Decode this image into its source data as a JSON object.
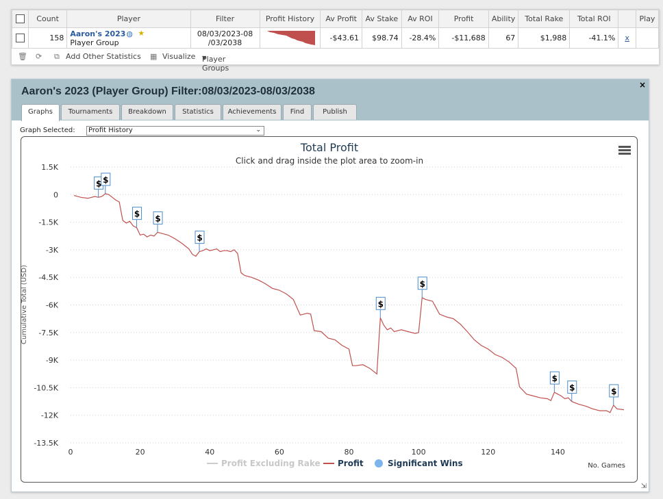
{
  "stats_table": {
    "headers": [
      "Count",
      "Player",
      "Filter",
      "Profit History",
      "Av Profit",
      "Av Stake",
      "Av ROI",
      "Profit",
      "Ability",
      "Total Rake",
      "Total ROI",
      "",
      "Play"
    ],
    "row": {
      "count": "158",
      "player_name": "Aaron's 2023",
      "player_type": "Player Group",
      "filter_line1": "08/03/2023-08",
      "filter_line2": "/03/2038",
      "av_profit": "-$43.61",
      "av_stake": "$98.74",
      "av_roi": "-28.4%",
      "profit": "-$11,688",
      "ability": "67",
      "total_rake": "$1,988",
      "total_roi": "-41.1%",
      "x_link": "x"
    }
  },
  "toolbar": {
    "add_stats": "Add Other Statistics",
    "visualize": "Visualize",
    "player_groups": "Player Groups"
  },
  "group_panel": {
    "title": "Aaron's 2023 (Player Group) Filter:08/03/2023-08/03/2038",
    "close": "×",
    "tabs": [
      "Graphs",
      "Tournaments",
      "Breakdown",
      "Statistics",
      "Achievements",
      "Find",
      "Publish"
    ],
    "active_tab": 0,
    "graph_selected_label": "Graph Selected:",
    "graph_selected_value": "Profit History"
  },
  "chart_data": {
    "type": "line",
    "title": "Total Profit",
    "subtitle": "Click and drag inside the plot area to zoom-in",
    "xlabel": "No. Games",
    "ylabel": "Cumulative Total (USD)",
    "xlim": [
      0,
      159
    ],
    "ylim": [
      -13500,
      1500
    ],
    "x_ticks": [
      0,
      20,
      40,
      60,
      80,
      100,
      120,
      140
    ],
    "y_ticks": [
      1500,
      0,
      -1500,
      -3000,
      -4500,
      -6000,
      -7500,
      -9000,
      -10500,
      -12000,
      -13500
    ],
    "y_tick_labels": [
      "1.5K",
      "0",
      "-1.5K",
      "-3K",
      "-4.5K",
      "-6K",
      "-7.5K",
      "-9K",
      "-10.5K",
      "-12K",
      "-13.5K"
    ],
    "legend": [
      "Profit Excluding Rake",
      "Profit",
      "Significant Wins"
    ],
    "series": [
      {
        "name": "Profit",
        "color": "#c0504d",
        "points": [
          [
            1,
            -50
          ],
          [
            3,
            -150
          ],
          [
            5,
            -200
          ],
          [
            7,
            -100
          ],
          [
            8,
            -150
          ],
          [
            9,
            -100
          ],
          [
            10,
            50
          ],
          [
            11,
            0
          ],
          [
            12,
            -150
          ],
          [
            13,
            -300
          ],
          [
            14,
            -400
          ],
          [
            15,
            -1400
          ],
          [
            16,
            -1550
          ],
          [
            17,
            -1450
          ],
          [
            18,
            -1700
          ],
          [
            19,
            -1800
          ],
          [
            20,
            -2200
          ],
          [
            21,
            -2150
          ],
          [
            22,
            -2300
          ],
          [
            23,
            -2200
          ],
          [
            24,
            -2250
          ],
          [
            25,
            -2050
          ],
          [
            26,
            -2100
          ],
          [
            28,
            -2200
          ],
          [
            30,
            -2400
          ],
          [
            32,
            -2650
          ],
          [
            34,
            -2950
          ],
          [
            35,
            -3250
          ],
          [
            36,
            -3350
          ],
          [
            37,
            -3100
          ],
          [
            38,
            -3050
          ],
          [
            39,
            -2950
          ],
          [
            40,
            -3050
          ],
          [
            41,
            -3000
          ],
          [
            42,
            -2950
          ],
          [
            43,
            -3100
          ],
          [
            44,
            -3050
          ],
          [
            45,
            -3050
          ],
          [
            46,
            -3100
          ],
          [
            47,
            -3000
          ],
          [
            48,
            -3200
          ],
          [
            49,
            -4250
          ],
          [
            50,
            -4400
          ],
          [
            52,
            -4500
          ],
          [
            54,
            -4650
          ],
          [
            56,
            -4850
          ],
          [
            58,
            -5100
          ],
          [
            60,
            -5200
          ],
          [
            62,
            -5400
          ],
          [
            64,
            -5700
          ],
          [
            66,
            -6550
          ],
          [
            68,
            -6450
          ],
          [
            69,
            -6500
          ],
          [
            70,
            -7400
          ],
          [
            72,
            -7450
          ],
          [
            74,
            -7800
          ],
          [
            76,
            -7900
          ],
          [
            78,
            -8200
          ],
          [
            80,
            -8400
          ],
          [
            81,
            -9300
          ],
          [
            82,
            -9300
          ],
          [
            84,
            -9250
          ],
          [
            86,
            -9450
          ],
          [
            88,
            -9750
          ],
          [
            89,
            -6700
          ],
          [
            90,
            -7100
          ],
          [
            91,
            -7350
          ],
          [
            92,
            -7250
          ],
          [
            93,
            -7450
          ],
          [
            95,
            -7350
          ],
          [
            97,
            -7450
          ],
          [
            99,
            -7550
          ],
          [
            100,
            -7500
          ],
          [
            101,
            -5600
          ],
          [
            102,
            -5700
          ],
          [
            103,
            -5750
          ],
          [
            104,
            -5800
          ],
          [
            106,
            -6500
          ],
          [
            108,
            -6650
          ],
          [
            110,
            -6750
          ],
          [
            112,
            -7050
          ],
          [
            114,
            -7450
          ],
          [
            116,
            -7900
          ],
          [
            118,
            -8200
          ],
          [
            120,
            -8400
          ],
          [
            122,
            -8700
          ],
          [
            124,
            -8850
          ],
          [
            126,
            -9100
          ],
          [
            128,
            -9450
          ],
          [
            129,
            -10450
          ],
          [
            131,
            -10850
          ],
          [
            133,
            -10950
          ],
          [
            135,
            -11050
          ],
          [
            137,
            -11100
          ],
          [
            138,
            -11200
          ],
          [
            139,
            -10750
          ],
          [
            140,
            -10850
          ],
          [
            141,
            -10950
          ],
          [
            142,
            -11100
          ],
          [
            143,
            -11050
          ],
          [
            144,
            -11250
          ],
          [
            146,
            -11400
          ],
          [
            148,
            -11500
          ],
          [
            150,
            -11650
          ],
          [
            152,
            -11750
          ],
          [
            154,
            -11750
          ],
          [
            155,
            -11850
          ],
          [
            156,
            -11450
          ],
          [
            157,
            -11650
          ],
          [
            159,
            -11700
          ]
        ]
      }
    ],
    "significant_wins": [
      8,
      10,
      19,
      25,
      37,
      89,
      101,
      139,
      144,
      156
    ]
  }
}
